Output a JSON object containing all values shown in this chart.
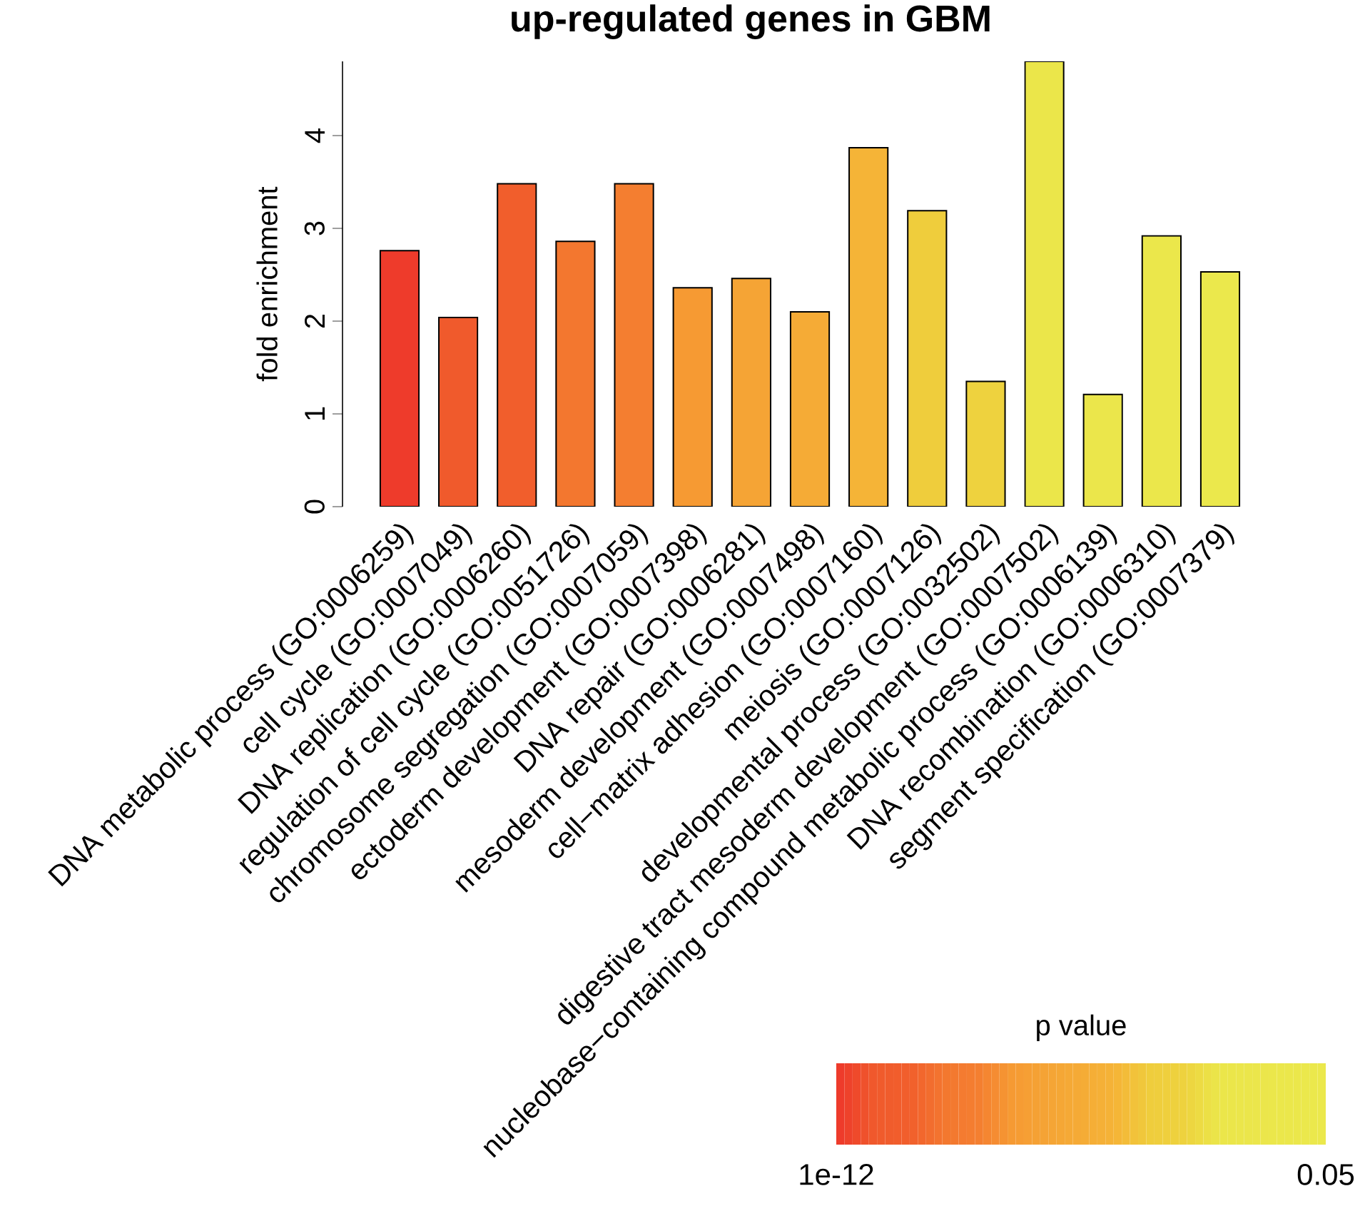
{
  "chart_data": {
    "type": "bar",
    "title": "up-regulated genes in GBM",
    "ylabel": "fold enrichment",
    "categories": [
      "DNA metabolic process (GO:0006259)",
      "cell cycle (GO:0007049)",
      "DNA replication (GO:0006260)",
      "regulation of cell cycle (GO:0051726)",
      "chromosome segregation (GO:0007059)",
      "ectoderm development (GO:0007398)",
      "DNA repair (GO:0006281)",
      "mesoderm development (GO:0007498)",
      "cell−matrix adhesion (GO:0007160)",
      "meiosis (GO:0007126)",
      "developmental process (GO:0032502)",
      "digestive tract mesoderm development (GO:0007502)",
      "nucleobase−containing compound metabolic process (GO:0006139)",
      "DNA recombination (GO:0006310)",
      "segment specification (GO:0007379)"
    ],
    "values": [
      2.76,
      2.04,
      3.48,
      2.86,
      3.48,
      2.36,
      2.46,
      2.1,
      3.87,
      3.19,
      1.35,
      4.8,
      1.21,
      2.92,
      2.53
    ],
    "colors": [
      "#ee3b2b",
      "#f05a2c",
      "#f15e2c",
      "#f3772f",
      "#f47e30",
      "#f69a33",
      "#f5a435",
      "#f5ab36",
      "#f5b437",
      "#efcd3c",
      "#eed23e",
      "#ebe64a",
      "#ebe64b",
      "#ebe74b",
      "#ebe84c"
    ],
    "ylim": [
      0,
      4.8
    ],
    "yticks": [
      0,
      1,
      2,
      3,
      4
    ],
    "clabel": "p value",
    "clim": [
      1e-12,
      0.05
    ],
    "cticks": [
      {
        "value": 1e-12,
        "label": "1e-12"
      },
      {
        "value": 0.05,
        "label": "0.05"
      }
    ]
  }
}
